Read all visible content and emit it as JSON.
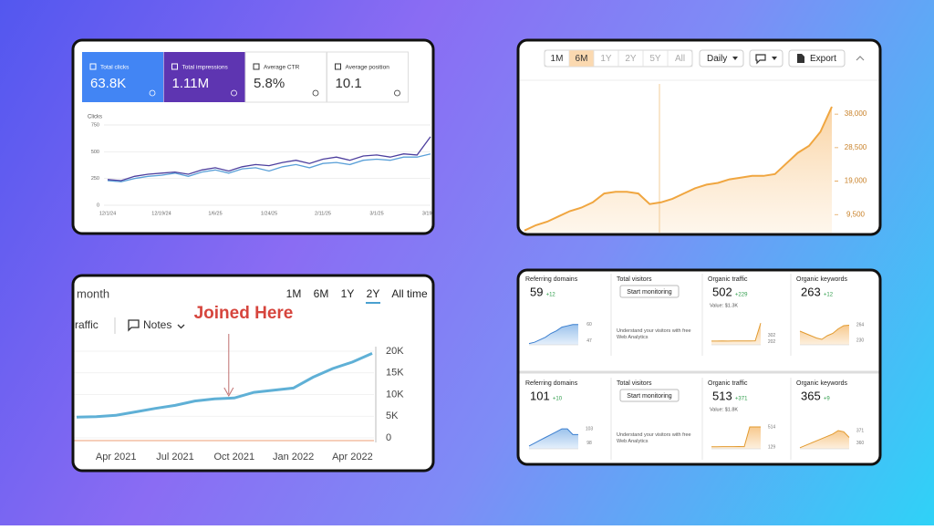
{
  "chart_data": [
    {
      "type": "line",
      "cards": [
        {
          "label": "Total clicks",
          "value": "63.8K"
        },
        {
          "label": "Total impressions",
          "value": "1.11M"
        },
        {
          "label": "Average CTR",
          "value": "5.8%"
        },
        {
          "label": "Average position",
          "value": "10.1"
        }
      ],
      "ylabel": "Clicks",
      "categories": [
        "12/1/24",
        null,
        null,
        null,
        "12/19/24",
        null,
        null,
        null,
        "1/6/25",
        null,
        null,
        null,
        "1/24/25",
        null,
        null,
        null,
        "2/11/25",
        null,
        null,
        null,
        "3/1/25",
        null,
        null,
        null,
        "3/19/25"
      ],
      "ylim": [
        0,
        750
      ],
      "yticks": [
        0,
        250,
        500,
        750
      ],
      "grid": true,
      "series": [
        {
          "color": "#4d3f9e",
          "values": [
            240,
            230,
            270,
            290,
            300,
            310,
            290,
            330,
            350,
            320,
            360,
            380,
            370,
            400,
            420,
            390,
            430,
            450,
            420,
            460,
            470,
            450,
            480,
            470,
            640
          ]
        },
        {
          "color": "#5aa0d8",
          "values": [
            230,
            220,
            250,
            270,
            280,
            300,
            270,
            310,
            330,
            300,
            340,
            350,
            320,
            360,
            380,
            350,
            390,
            400,
            380,
            420,
            430,
            420,
            450,
            450,
            480
          ]
        }
      ]
    },
    {
      "type": "area",
      "ranges": [
        "1M",
        "6M",
        "1Y",
        "2Y",
        "5Y",
        "All"
      ],
      "active_range": 1,
      "buttons": [
        "Daily",
        "Export"
      ],
      "ylim": [
        4400,
        44500
      ],
      "yticks": [
        {
          "value": 9500,
          "label": "9,500"
        },
        {
          "value": 19000,
          "label": "19,000"
        },
        {
          "value": 28500,
          "label": "28,500"
        },
        {
          "value": 38000,
          "label": "38,000"
        }
      ],
      "color": "#f0a640",
      "values": [
        5000,
        6500,
        7500,
        9000,
        10500,
        11500,
        13000,
        15500,
        16000,
        16000,
        15500,
        12500,
        13000,
        14000,
        15500,
        17000,
        18000,
        18500,
        19500,
        20000,
        20500,
        20500,
        21000,
        24000,
        27000,
        29000,
        33000,
        40100
      ]
    },
    {
      "type": "line",
      "period": "month",
      "ranges": [
        "1M",
        "6M",
        "1Y",
        "2Y",
        "All time"
      ],
      "active_range": 3,
      "metric": "raffic",
      "notes": "Notes",
      "annotation": {
        "text": "Joined Here",
        "index": 8
      },
      "categories": [
        null,
        null,
        "Apr 2021",
        null,
        null,
        "Jul 2021",
        null,
        null,
        "Oct 2021",
        null,
        null,
        "Jan 2022",
        null,
        null,
        "Apr 2022",
        null
      ],
      "ylim": [
        0,
        20000
      ],
      "yticks": [
        0,
        {
          "value": 5000,
          "label": "5K"
        },
        {
          "value": 10000,
          "label": "10K"
        },
        {
          "value": 15000,
          "label": "15K"
        },
        {
          "value": 20000,
          "label": "20K"
        }
      ],
      "color": "#5fb0d6",
      "values": [
        4800,
        4900,
        5200,
        6000,
        6800,
        7500,
        8500,
        9000,
        9200,
        10500,
        11000,
        11500,
        14000,
        16000,
        17500,
        19500
      ]
    },
    {
      "type": "sparklines",
      "rows": [
        {
          "referring_domains": {
            "label": "Referring domains",
            "value": "59",
            "change": "+12",
            "ylim": [
              44,
              62
            ],
            "yticks": [
              47,
              60
            ],
            "values": [
              45,
              46,
              48,
              50,
              53,
              55,
              58,
              59,
              60,
              60
            ]
          },
          "visitors": {
            "label": "Total visitors",
            "button": "Start monitoring",
            "note": "Understand your visitors with free Web Analytics"
          },
          "organic_traffic": {
            "label": "Organic traffic",
            "value": "502",
            "change": "+229",
            "worth": "Value: $1.3K",
            "ylim": [
              150,
              520
            ],
            "yticks": [
              202,
              302
            ],
            "values": [
              210,
              210,
              212,
              211,
              213,
              212,
              214,
              213,
              215,
              502
            ]
          },
          "organic_keywords": {
            "label": "Organic keywords",
            "value": "263",
            "change": "+12",
            "ylim": [
              220,
              270
            ],
            "yticks": [
              230,
              264
            ],
            "values": [
              250,
              245,
              240,
              235,
              232,
              240,
              245,
              255,
              262,
              263
            ]
          }
        },
        {
          "referring_domains": {
            "label": "Referring domains",
            "value": "101",
            "change": "+10",
            "ylim": [
              96,
              104
            ],
            "yticks": [
              98,
              103
            ],
            "values": [
              97,
              98,
              99,
              100,
              101,
              102,
              103,
              103,
              101,
              101
            ]
          },
          "visitors": {
            "label": "Total visitors",
            "button": "Start monitoring",
            "note": "Understand your visitors with free Web Analytics"
          },
          "organic_traffic": {
            "label": "Organic traffic",
            "value": "513",
            "change": "+371",
            "worth": "Value: $1.8K",
            "ylim": [
              100,
              530
            ],
            "yticks": [
              129,
              514
            ],
            "values": [
              140,
              140,
              142,
              141,
              142,
              143,
              142,
              513,
              513,
              513
            ]
          },
          "organic_keywords": {
            "label": "Organic keywords",
            "value": "365",
            "change": "+9",
            "ylim": [
              355,
              375
            ],
            "yticks": [
              360,
              371
            ],
            "values": [
              356,
              358,
              360,
              362,
              364,
              366,
              368,
              371,
              370,
              365
            ]
          }
        }
      ]
    }
  ]
}
